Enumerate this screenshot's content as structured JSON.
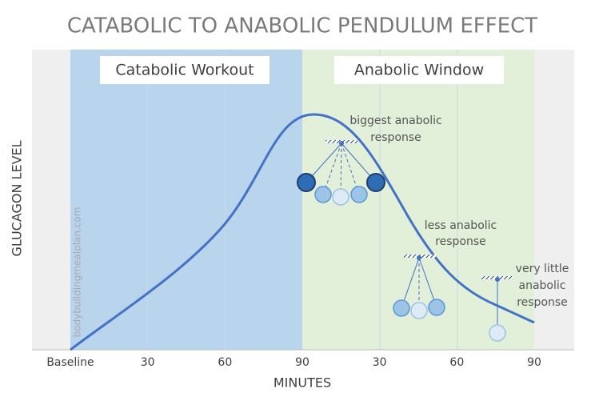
{
  "title": "CATABOLIC TO ANABOLIC PENDULUM EFFECT",
  "sections": [
    {
      "label": "Catabolic Workout"
    },
    {
      "label": "Anabolic Window"
    }
  ],
  "y_axis_label": "GLUCAGON LEVEL",
  "x_axis_label": "MINUTES",
  "x_ticks": [
    "Baseline",
    "30",
    "60",
    "90",
    "30",
    "60",
    "90"
  ],
  "annotations": [
    {
      "lines": [
        "biggest anabolic",
        "response"
      ]
    },
    {
      "lines": [
        "less anabolic",
        "response"
      ]
    },
    {
      "lines": [
        "very little",
        "anabolic",
        "response"
      ]
    }
  ],
  "watermark": "bodybuildingmealplan.com"
}
